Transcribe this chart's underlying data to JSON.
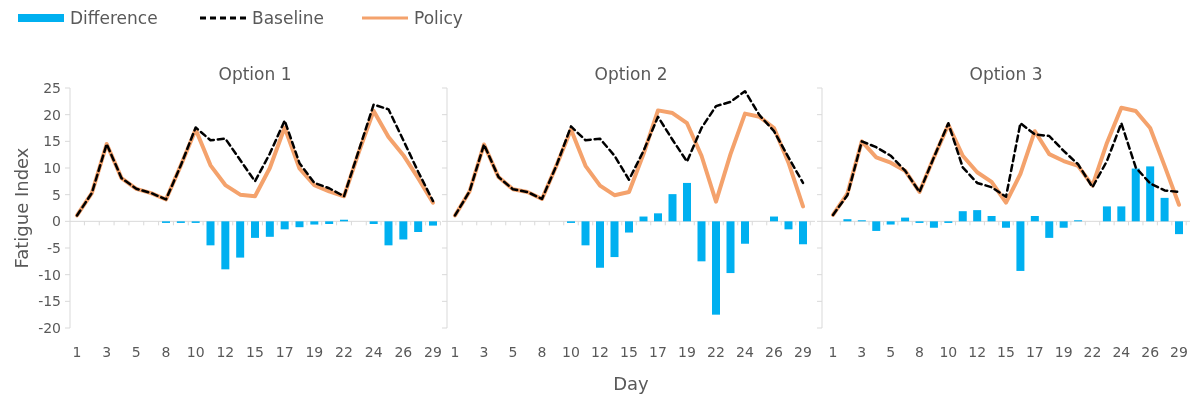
{
  "chart_data": [
    {
      "type": "line",
      "title": "Option 1",
      "ylabel": "Fatigue Index",
      "categories": [
        "1",
        null,
        "3",
        null,
        "5",
        null,
        "8",
        null,
        "10",
        null,
        "12",
        null,
        "15",
        null,
        "17",
        null,
        "19",
        null,
        "22",
        null,
        "24",
        null,
        "26",
        null,
        "29"
      ],
      "ylim": [
        -20,
        25
      ],
      "yticks": [
        -20,
        -15,
        -10,
        -5,
        0,
        5,
        10,
        15,
        20,
        25
      ],
      "legend": "top left",
      "series": [
        {
          "name": "Difference",
          "type": "bar",
          "color": "#00b0f0",
          "values": [
            0,
            0,
            0,
            0,
            0,
            0,
            -0.3,
            -0.3,
            -0.3,
            -4.5,
            -9.0,
            -6.8,
            -3.1,
            -2.9,
            -1.5,
            -1.1,
            -0.6,
            -0.5,
            0.3,
            0,
            -0.5,
            -4.5,
            -3.4,
            -2.0,
            -0.8
          ]
        },
        {
          "name": "Baseline",
          "line_style": "dashed",
          "color": "#000000",
          "values": [
            1.1,
            5.3,
            14.5,
            8.1,
            6.1,
            5.3,
            4.1,
            10.5,
            17.6,
            15.2,
            15.5,
            11.5,
            7.5,
            12.7,
            18.9,
            10.9,
            7.2,
            6.2,
            4.7,
            13.3,
            21.9,
            21.0,
            15.2,
            9.3,
            3.8
          ]
        },
        {
          "name": "Policy",
          "line_style": "solid",
          "color": "#f4a26c",
          "values": [
            1.1,
            5.3,
            14.5,
            8.1,
            6.1,
            5.3,
            4.1,
            10.5,
            17.2,
            10.5,
            6.8,
            5.0,
            4.7,
            10.0,
            17.6,
            9.9,
            6.8,
            5.6,
            4.7,
            13.0,
            20.7,
            15.8,
            12.4,
            8.1,
            3.5
          ]
        }
      ]
    },
    {
      "type": "line",
      "title": "Option 2",
      "xlabel": "Day",
      "categories": [
        "1",
        null,
        "3",
        null,
        "5",
        null,
        "8",
        null,
        "10",
        null,
        "12",
        null,
        "15",
        null,
        "17",
        null,
        "19",
        null,
        "22",
        null,
        "24",
        null,
        "26",
        null,
        "29"
      ],
      "ylim": [
        -20,
        25
      ],
      "yticks": [
        -20,
        -15,
        -10,
        -5,
        0,
        5,
        10,
        15,
        20,
        25
      ],
      "tick_labels": "x",
      "series": [
        {
          "type": "bar",
          "color": "#00b0f0",
          "values": [
            0,
            0,
            0,
            0,
            0,
            0,
            0,
            0,
            -0.3,
            -4.5,
            -8.7,
            -6.7,
            -2.1,
            0.9,
            1.5,
            5.1,
            7.2,
            -7.5,
            -17.5,
            -9.7,
            -4.2,
            0,
            0.9,
            -1.5,
            -4.3
          ]
        },
        {
          "line_style": "dashed",
          "color": "#000000",
          "values": [
            1.1,
            5.6,
            14.4,
            8.3,
            6.0,
            5.5,
            4.2,
            10.5,
            17.8,
            15.2,
            15.5,
            12.3,
            7.8,
            13.2,
            19.6,
            15.3,
            11.2,
            17.5,
            21.6,
            22.4,
            24.4,
            19.9,
            16.9,
            12.0,
            7.2
          ]
        },
        {
          "line_style": "solid",
          "color": "#f4a26c",
          "values": [
            1.1,
            5.6,
            14.4,
            8.3,
            6.0,
            5.5,
            4.2,
            10.5,
            17.2,
            10.4,
            6.7,
            4.9,
            5.5,
            12.6,
            20.8,
            20.3,
            18.4,
            12.3,
            3.7,
            12.6,
            20.2,
            19.6,
            17.5,
            11.0,
            2.8
          ]
        }
      ]
    },
    {
      "type": "line",
      "title": "Option 3",
      "categories": [
        "1",
        null,
        "3",
        null,
        "5",
        null,
        "8",
        null,
        "10",
        null,
        "12",
        null,
        "15",
        null,
        "17",
        null,
        "19",
        null,
        "22",
        null,
        "24",
        null,
        "26",
        null,
        "29"
      ],
      "ylim": [
        -20,
        25
      ],
      "yticks": [
        -20,
        -15,
        -10,
        -5,
        0,
        5,
        10,
        15,
        20,
        25
      ],
      "tick_labels": "x",
      "series": [
        {
          "type": "bar",
          "color": "#00b0f0",
          "values": [
            0,
            0.4,
            0.2,
            -1.8,
            -0.6,
            0.7,
            -0.3,
            -1.2,
            -0.3,
            1.9,
            2.1,
            1.0,
            -1.2,
            -9.3,
            1.0,
            -3.1,
            -1.2,
            0.2,
            0,
            2.8,
            2.8,
            9.9,
            10.3,
            4.4,
            -2.4
          ]
        },
        {
          "line_style": "dashed",
          "color": "#000000",
          "values": [
            1.2,
            4.9,
            15.0,
            13.9,
            12.3,
            9.5,
            5.5,
            12.0,
            18.4,
            10.1,
            7.2,
            6.4,
            4.6,
            18.4,
            16.3,
            16.0,
            13.2,
            10.7,
            6.4,
            11.3,
            18.4,
            10.1,
            7.1,
            5.8,
            5.5
          ]
        },
        {
          "line_style": "solid",
          "color": "#f4a26c",
          "values": [
            1.2,
            5.2,
            15.0,
            12.0,
            11.0,
            9.5,
            5.5,
            12.0,
            18.1,
            12.3,
            9.2,
            7.4,
            3.5,
            8.9,
            16.9,
            12.6,
            11.3,
            10.4,
            6.7,
            14.7,
            21.3,
            20.7,
            17.5,
            10.4,
            3.1
          ]
        }
      ]
    }
  ]
}
